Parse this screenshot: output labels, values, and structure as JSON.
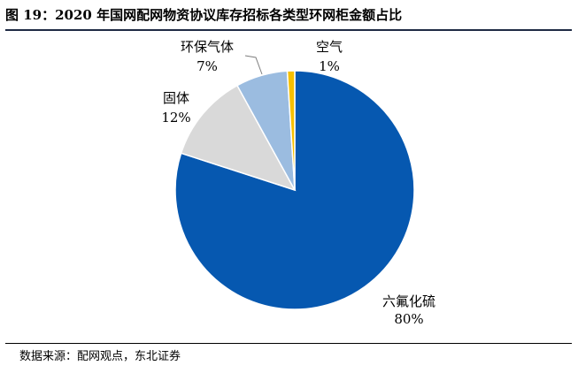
{
  "title": "图 19：2020 年国网配网物资协议库存招标各类型环网柜金额占比",
  "source": "数据来源：配网观点，东北证券",
  "colors": {
    "六氟化硫": "#0658B0",
    "固体": "#D9D9D9",
    "环保气体": "#9BBCE0",
    "空气": "#F6C000",
    "title_rule": "#1f2a44"
  },
  "chart_data": {
    "type": "pie",
    "title": "图 19：2020 年国网配网物资协议库存招标各类型环网柜金额占比",
    "start": "12 o'clock",
    "direction": "clockwise",
    "slices": [
      {
        "label": "六氟化硫",
        "value": 80,
        "value_label": "80%",
        "color": "#0658B0"
      },
      {
        "label": "固体",
        "value": 12,
        "value_label": "12%",
        "color": "#D9D9D9"
      },
      {
        "label": "环保气体",
        "value": 7,
        "value_label": "7%",
        "color": "#9BBCE0"
      },
      {
        "label": "空气",
        "value": 1,
        "value_label": "1%",
        "color": "#F6C000"
      }
    ]
  }
}
